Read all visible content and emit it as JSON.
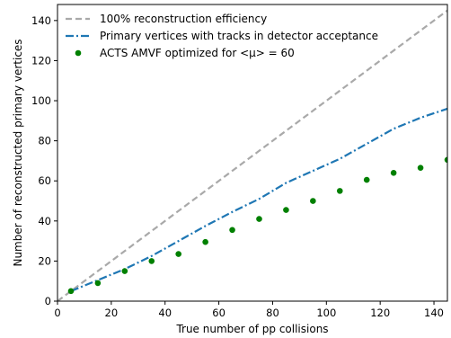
{
  "chart_data": {
    "type": "line",
    "xlabel": "True number of pp collisions",
    "ylabel": "Number of reconstructed primary vertices",
    "xlim": [
      0,
      145
    ],
    "ylim": [
      0,
      148
    ],
    "x_ticks": [
      "0",
      "20",
      "40",
      "60",
      "80",
      "100",
      "120",
      "140"
    ],
    "y_ticks": [
      "0",
      "20",
      "40",
      "60",
      "80",
      "100",
      "120",
      "140"
    ],
    "legend_position": "top-left",
    "grid": false,
    "series": [
      {
        "name": "100% reconstruction efficiency",
        "kind": "line",
        "style": "dashed",
        "color": "#a9a9a9",
        "x": [
          0,
          145
        ],
        "y": [
          0,
          145
        ]
      },
      {
        "name": "Primary vertices with tracks in detector acceptance",
        "kind": "line",
        "style": "dashdot",
        "color": "#1f77b4",
        "x": [
          5,
          15,
          25,
          35,
          45,
          55,
          65,
          75,
          85,
          95,
          105,
          115,
          125,
          135,
          145
        ],
        "y": [
          5,
          10.5,
          16,
          22.5,
          30,
          37.5,
          44.5,
          51,
          59,
          65,
          71,
          78.5,
          86,
          91.5,
          96
        ]
      },
      {
        "name": "ACTS AMVF optimized for <μ> = 60",
        "kind": "scatter",
        "color": "#008000",
        "x": [
          5,
          15,
          25,
          35,
          45,
          55,
          65,
          75,
          85,
          95,
          105,
          115,
          125,
          135,
          145
        ],
        "y": [
          5,
          9,
          15,
          20,
          23.5,
          29.5,
          35.5,
          41,
          45.5,
          50,
          55,
          60.5,
          64,
          66.5,
          70.5
        ]
      }
    ]
  }
}
